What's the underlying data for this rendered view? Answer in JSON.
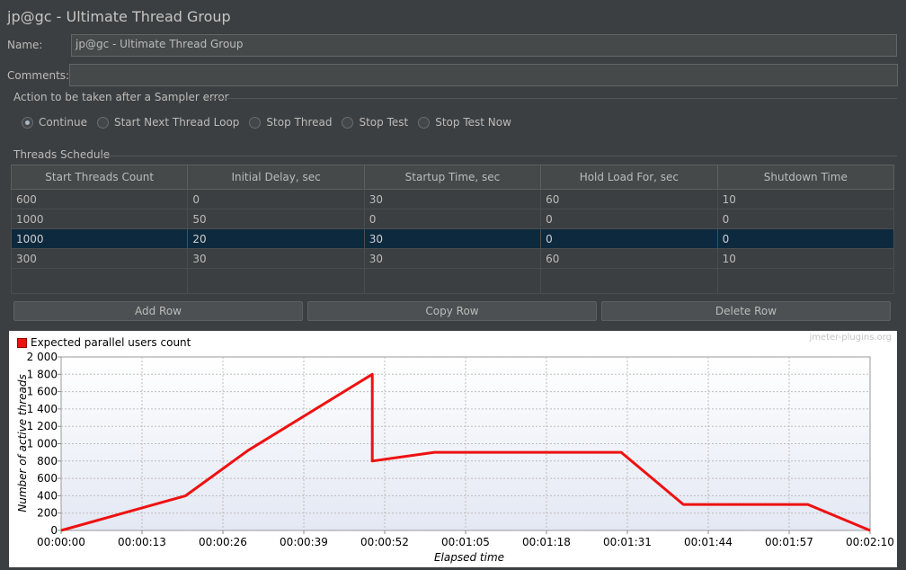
{
  "window": {
    "title": "jp@gc - Ultimate Thread Group"
  },
  "form": {
    "name_label": "Name:",
    "name_value": "jp@gc - Ultimate Thread Group",
    "comments_label": "Comments:",
    "comments_value": ""
  },
  "sampler_error": {
    "section_title": "Action to be taken after a Sampler error",
    "options": [
      "Continue",
      "Start Next Thread Loop",
      "Stop Thread",
      "Stop Test",
      "Stop Test Now"
    ],
    "selected": "Continue"
  },
  "schedule": {
    "section_title": "Threads Schedule",
    "columns": [
      "Start Threads Count",
      "Initial Delay, sec",
      "Startup Time, sec",
      "Hold Load For, sec",
      "Shutdown Time"
    ],
    "rows": [
      [
        "600",
        "0",
        "30",
        "60",
        "10"
      ],
      [
        "1000",
        "50",
        "0",
        "0",
        "0"
      ],
      [
        "1000",
        "20",
        "30",
        "0",
        "0"
      ],
      [
        "300",
        "30",
        "30",
        "60",
        "10"
      ]
    ],
    "selected_row": 2
  },
  "buttons": {
    "add_row": "Add Row",
    "copy_row": "Copy Row",
    "delete_row": "Delete Row"
  },
  "colors": {
    "background": "#3c3f41",
    "selection": "#0d293e",
    "series": "#ee1111"
  },
  "chart_data": {
    "type": "line",
    "legend": "Expected parallel users count",
    "watermark": "jmeter-plugins.org",
    "xlabel": "Elapsed time",
    "ylabel": "Number of active threads",
    "xlim": [
      0,
      130
    ],
    "ylim": [
      0,
      2000
    ],
    "x_ticks": [
      0,
      13,
      26,
      39,
      52,
      65,
      78,
      91,
      104,
      117,
      130
    ],
    "x_tick_labels": [
      "00:00:00",
      "00:00:13",
      "00:00:26",
      "00:00:39",
      "00:00:52",
      "00:01:05",
      "00:01:18",
      "00:01:31",
      "00:01:44",
      "00:01:57",
      "00:02:10"
    ],
    "y_ticks": [
      0,
      200,
      400,
      600,
      800,
      1000,
      1200,
      1400,
      1600,
      1800,
      2000
    ],
    "y_tick_labels": [
      "0",
      "200",
      "400",
      "600",
      "800",
      "1 000",
      "1 200",
      "1 400",
      "1 600",
      "1 800",
      "2 000"
    ],
    "grid": true,
    "series": [
      {
        "name": "Expected parallel users count",
        "x": [
          0,
          20,
          30,
          50,
          50,
          60,
          90,
          100,
          120,
          130
        ],
        "y": [
          0,
          400,
          920,
          1800,
          800,
          900,
          900,
          300,
          300,
          0
        ]
      }
    ]
  }
}
